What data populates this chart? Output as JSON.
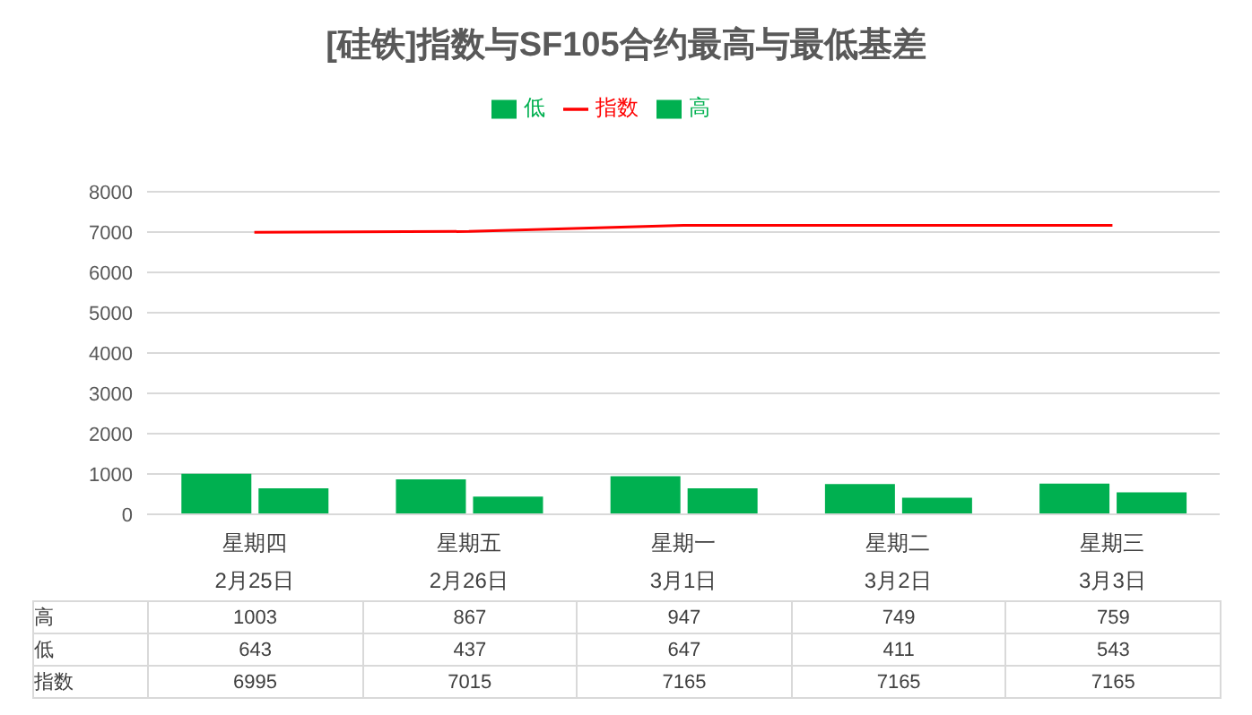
{
  "chart_data": {
    "type": "bar",
    "title": "[硅铁]指数与SF105合约最高与最低基差",
    "categories": [
      "星期四\n2月25日",
      "星期五\n2月26日",
      "星期一\n3月1日",
      "星期二\n3月2日",
      "星期三\n3月3日"
    ],
    "series": [
      {
        "name": "高",
        "color": "#00b050",
        "values": [
          1003,
          867,
          947,
          749,
          759
        ]
      },
      {
        "name": "低",
        "color": "#00b050",
        "values": [
          643,
          437,
          647,
          411,
          543
        ]
      },
      {
        "name": "指数",
        "type": "line",
        "color": "#ff0000",
        "values": [
          6995,
          7015,
          7165,
          7165,
          7165
        ]
      }
    ],
    "ylim": [
      0,
      8000
    ],
    "yticks": [
      0,
      1000,
      2000,
      3000,
      4000,
      5000,
      6000,
      7000,
      8000
    ],
    "grid": "y",
    "legend": "top",
    "data_labels": true
  }
}
